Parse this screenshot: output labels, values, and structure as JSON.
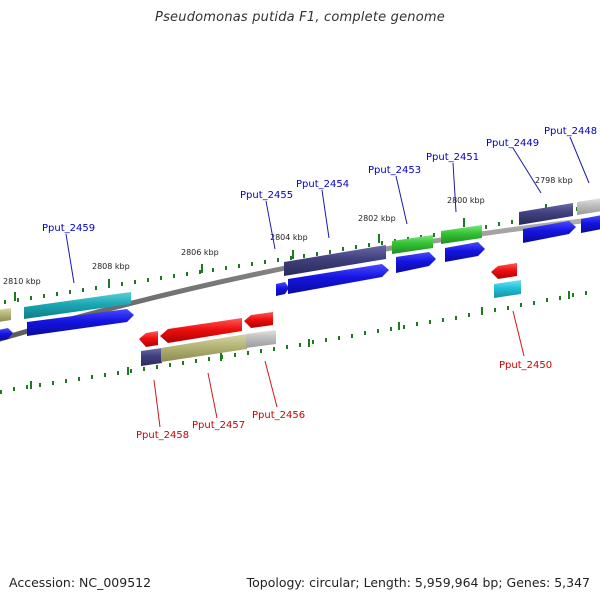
{
  "header": {
    "title": "Pseudomonas putida F1, complete genome"
  },
  "footer": {
    "accession": "Accession: NC_009512",
    "stats": "Topology: circular; Length: 5,959,964 bp; Genes: 5,347"
  },
  "ruler_labels": [
    "2810 kbp",
    "2808 kbp",
    "2806 kbp",
    "2804 kbp",
    "2802 kbp",
    "2800 kbp",
    "2798 kbp"
  ],
  "genes_forward": [
    "Pput_2459",
    "Pput_2455",
    "Pput_2454",
    "Pput_2453",
    "Pput_2451",
    "Pput_2449",
    "Pput_2448"
  ],
  "genes_reverse": [
    "Pput_2458",
    "Pput_2457",
    "Pput_2456",
    "Pput_2450"
  ],
  "colors": {
    "forward_label": "#0000cc",
    "reverse_label": "#cc0000",
    "cds_blue": "#1a1ae6",
    "red": "#ee1111",
    "navy": "#3f3f7f",
    "cyan": "#28c4dc",
    "green": "#33c433",
    "khaki": "#b4b478",
    "grey": "#bdbdbd",
    "tick": "#1f7a1f",
    "backbone": "#808080"
  }
}
